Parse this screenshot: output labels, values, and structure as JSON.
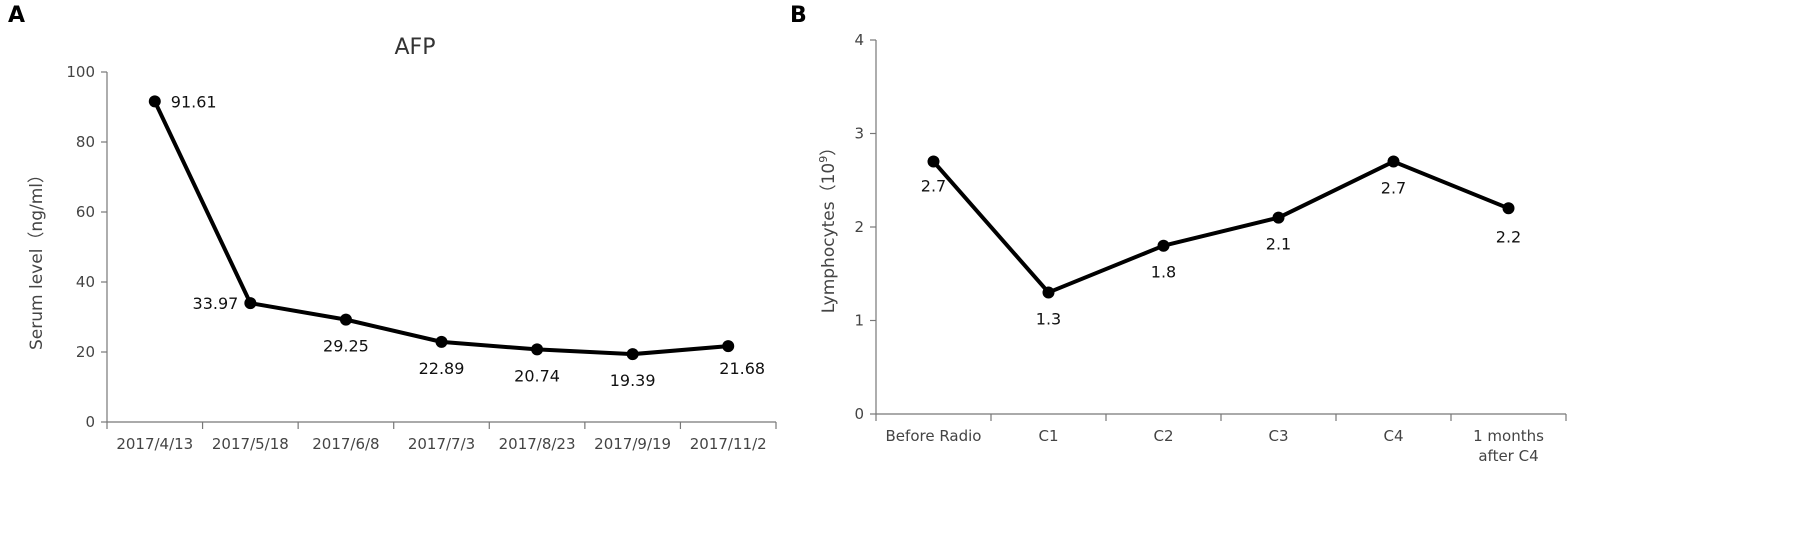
{
  "figure": {
    "panel_a_letter": "A",
    "panel_b_letter": "B"
  },
  "chart_data": [
    {
      "type": "line",
      "title": "AFP",
      "xlabel": "",
      "ylabel": "Serum level（ng/ml）",
      "ylim": [
        0,
        100
      ],
      "yticks": [
        "0",
        "20",
        "40",
        "60",
        "80",
        "100"
      ],
      "categories": [
        "2017/4/13",
        "2017/5/18",
        "2017/6/8",
        "2017/7/3",
        "2017/8/23",
        "2017/9/19",
        "2017/11/2"
      ],
      "values": [
        91.61,
        33.97,
        29.25,
        22.89,
        20.74,
        19.39,
        21.68
      ],
      "data_labels": [
        "91.61",
        "33.97",
        "29.25",
        "22.89",
        "20.74",
        "19.39",
        "21.68"
      ],
      "grid": false,
      "legend": "none",
      "line_color": "#000000"
    },
    {
      "type": "line",
      "title": "",
      "xlabel": "",
      "ylabel": "Lymphocytes（10",
      "ylabel_sup": "9",
      "ylabel_close": "）",
      "ylim": [
        0,
        4
      ],
      "yticks": [
        "0",
        "1",
        "2",
        "3",
        "4"
      ],
      "categories": [
        "Before Radio",
        "C1",
        "C2",
        "C3",
        "C4",
        "1 months after C4"
      ],
      "category_lines": [
        [
          "Before Radio"
        ],
        [
          "C1"
        ],
        [
          "C2"
        ],
        [
          "C3"
        ],
        [
          "C4"
        ],
        [
          "1 months",
          "after C4"
        ]
      ],
      "values": [
        2.7,
        1.3,
        1.8,
        2.1,
        2.7,
        2.2
      ],
      "data_labels": [
        "2.7",
        "1.3",
        "1.8",
        "2.1",
        "2.7",
        "2.2"
      ],
      "grid": false,
      "legend": "none",
      "line_color": "#000000"
    }
  ]
}
